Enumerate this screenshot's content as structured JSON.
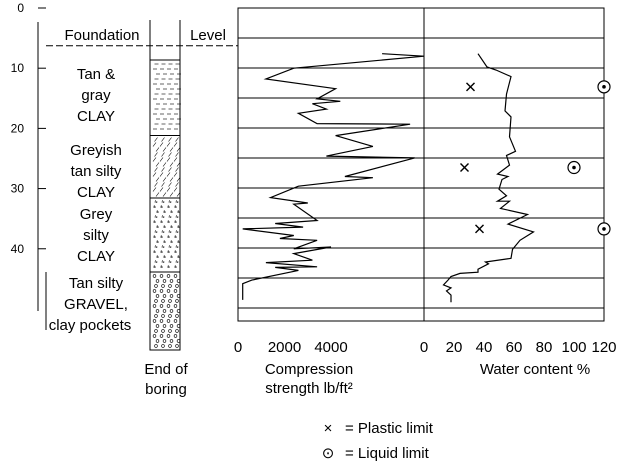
{
  "depth_axis": {
    "ticks": [
      "0",
      "10",
      "20",
      "30",
      "40"
    ]
  },
  "log_panel": {
    "header_left": "Foundation",
    "header_right": "Level",
    "layers": [
      {
        "lines": [
          "Tan &",
          "gray",
          "CLAY"
        ]
      },
      {
        "lines": [
          "Greyish",
          "tan silty",
          "CLAY"
        ]
      },
      {
        "lines": [
          "Grey",
          "silty",
          "CLAY"
        ]
      },
      {
        "lines": [
          "Tan silty",
          "GRAVEL,",
          "clay pockets"
        ]
      }
    ],
    "end_label": [
      "End of",
      "boring"
    ]
  },
  "compression_axis": {
    "ticks": [
      "0",
      "2000",
      "4000"
    ],
    "label": [
      "Compression",
      "strength lb/ft²"
    ]
  },
  "water_axis": {
    "ticks": [
      "0",
      "20",
      "40",
      "60",
      "80",
      "100",
      "120"
    ],
    "label": "Water content %"
  },
  "legend": {
    "items": [
      {
        "symbol": "×",
        "label": "= Plastic limit"
      },
      {
        "symbol": "⊙",
        "label": "= Liquid limit"
      }
    ]
  },
  "chart_data": [
    {
      "type": "line",
      "title": "",
      "xlabel": "Compression strength lb/ft²",
      "ylabel": "",
      "xlim": [
        0,
        4000
      ],
      "ylim": [
        0,
        52
      ],
      "y_inverted": true,
      "grid": true,
      "x_tick_labels": [
        "0",
        "2000",
        "4000"
      ],
      "y_tick_labels": [
        "0",
        "10",
        "20",
        "30",
        "40"
      ],
      "series": [
        {
          "x": [
            3100,
            4000,
            1200,
            600,
            2100,
            1700,
            2200,
            1600,
            1900,
            1300,
            1700,
            3700,
            2100,
            2900,
            1900,
            3800,
            2300,
            2900,
            1300,
            700,
            1500,
            1200,
            1700,
            800,
            1400,
            100,
            1200,
            900,
            1700,
            1200,
            2000,
            1200,
            1600,
            600,
            1700,
            800,
            1300,
            300,
            100,
            100,
            100
          ],
          "y": [
            7.6,
            8.0,
            10.0,
            11.8,
            13.4,
            15.1,
            15.5,
            15.9,
            16.8,
            17.5,
            19.2,
            19.3,
            21.2,
            23.0,
            24.6,
            24.9,
            28.0,
            28.2,
            29.6,
            31.5,
            32.4,
            32.6,
            35.3,
            35.8,
            36.4,
            36.7,
            37.8,
            38.3,
            38.6,
            40.0,
            39.7,
            40.8,
            41.9,
            42.3,
            43.0,
            43.1,
            43.6,
            45.2,
            45.8,
            47.5,
            48.5
          ]
        }
      ]
    },
    {
      "type": "line",
      "title": "",
      "xlabel": "Water content %",
      "ylabel": "",
      "xlim": [
        0,
        120
      ],
      "ylim": [
        0,
        52
      ],
      "y_inverted": true,
      "grid": true,
      "x_tick_labels": [
        "0",
        "20",
        "40",
        "60",
        "80",
        "100",
        "120"
      ],
      "series": [
        {
          "x": [
            36,
            42,
            48,
            58,
            55,
            54,
            58,
            57,
            61,
            55,
            57,
            49,
            56,
            52,
            50,
            55,
            49,
            57,
            51,
            69,
            56,
            73,
            64,
            59,
            58,
            52,
            41,
            43,
            36,
            36,
            24,
            18,
            16,
            13,
            18,
            15,
            18,
            18
          ],
          "y": [
            7.6,
            9.8,
            10.3,
            11.4,
            14.3,
            17.1,
            18.1,
            21.4,
            23.8,
            24.5,
            26.1,
            27.6,
            28.0,
            28.5,
            30.1,
            31.2,
            32.1,
            32.1,
            33.3,
            34.3,
            35.9,
            37.2,
            38.6,
            40.1,
            41.6,
            41.8,
            42.2,
            42.5,
            43.4,
            43.9,
            44.1,
            44.6,
            45.2,
            46.0,
            46.5,
            47.0,
            47.7,
            48.9
          ]
        }
      ],
      "markers": {
        "plastic_limit": {
          "x": [
            31,
            27,
            37
          ],
          "y": [
            13.1,
            26.5,
            36.7
          ]
        },
        "liquid_limit": {
          "x": [
            120,
            100,
            120
          ],
          "y": [
            13.1,
            26.5,
            36.7
          ]
        }
      }
    }
  ]
}
